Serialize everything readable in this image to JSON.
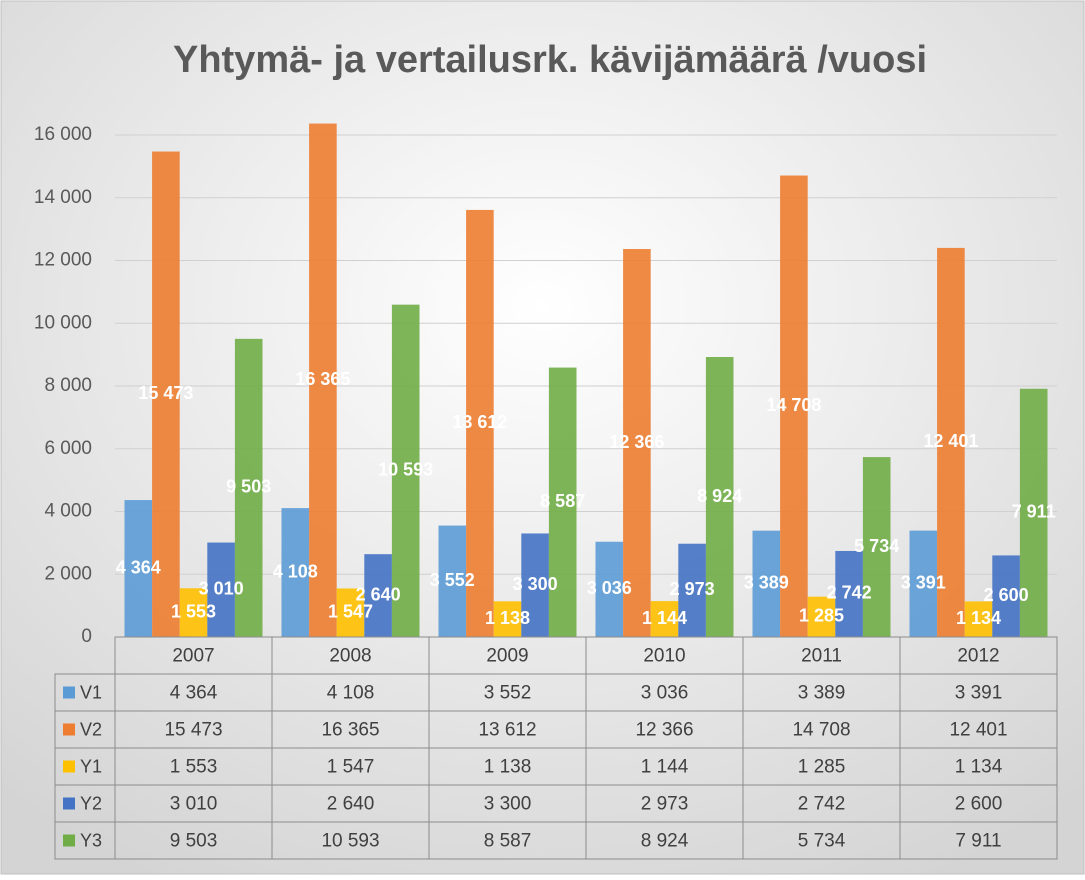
{
  "chart_data": {
    "type": "bar",
    "title": "Yhtymä- ja vertailusrk. kävijämäärä /vuosi",
    "categories": [
      "2007",
      "2008",
      "2009",
      "2010",
      "2011",
      "2012"
    ],
    "series": [
      {
        "name": "V1",
        "color": "#5b9bd5",
        "values": [
          4364,
          4108,
          3552,
          3036,
          3389,
          3391
        ],
        "value_labels": [
          "4 364",
          "4 108",
          "3 552",
          "3 036",
          "3 389",
          "3 391"
        ]
      },
      {
        "name": "V2",
        "color": "#ed7d31",
        "values": [
          15473,
          16365,
          13612,
          12366,
          14708,
          12401
        ],
        "value_labels": [
          "15 473",
          "16 365",
          "13 612",
          "12 366",
          "14 708",
          "12 401"
        ]
      },
      {
        "name": "Y1",
        "color": "#ffc000",
        "values": [
          1553,
          1547,
          1138,
          1144,
          1285,
          1134
        ],
        "value_labels": [
          "1 553",
          "1 547",
          "1 138",
          "1 144",
          "1 285",
          "1 134"
        ]
      },
      {
        "name": "Y2",
        "color": "#4472c4",
        "values": [
          3010,
          2640,
          3300,
          2973,
          2742,
          2600
        ],
        "value_labels": [
          "3 010",
          "2 640",
          "3 300",
          "2 973",
          "2 742",
          "2 600"
        ]
      },
      {
        "name": "Y3",
        "color": "#70ad47",
        "values": [
          9503,
          10593,
          8587,
          8924,
          5734,
          7911
        ],
        "value_labels": [
          "9 503",
          "10 593",
          "8 587",
          "8 924",
          "5 734",
          "7 911"
        ]
      }
    ],
    "ylim": [
      0,
      16000
    ],
    "yticks": [
      0,
      {
        "value": 2000,
        "label": "2 000"
      },
      {
        "value": 4000,
        "label": "4 000"
      },
      {
        "value": 6000,
        "label": "6 000"
      },
      {
        "value": 8000,
        "label": "8 000"
      },
      {
        "value": 10000,
        "label": "10 000"
      },
      {
        "value": 12000,
        "label": "12 000"
      },
      {
        "value": 14000,
        "label": "14 000"
      },
      {
        "value": 16000,
        "label": "16 000"
      }
    ],
    "grid": true
  }
}
